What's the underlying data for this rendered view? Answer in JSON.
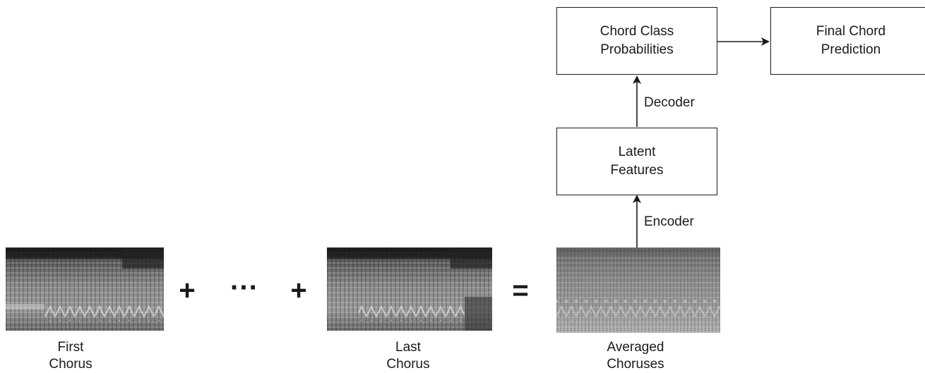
{
  "boxes": {
    "chord_class": {
      "line1": "Chord Class",
      "line2": "Probabilities"
    },
    "final_chord": {
      "line1": "Final Chord",
      "line2": "Prediction"
    },
    "latent": {
      "line1": "Latent",
      "line2": "Features"
    }
  },
  "edges": {
    "decoder": "Decoder",
    "encoder": "Encoder"
  },
  "spectrograms": {
    "first": {
      "line1": "First",
      "line2": "Chorus"
    },
    "last": {
      "line1": "Last",
      "line2": "Chorus"
    },
    "averaged": {
      "line1": "Averaged",
      "line2": "Choruses"
    }
  },
  "operators": {
    "plus": "+",
    "ellipsis": "···",
    "equals": "="
  },
  "colors": {
    "stroke": "#1a1a1a",
    "spectrogram_dark": "#1e1e1e",
    "spectrogram_light": "#d8d8d8"
  }
}
